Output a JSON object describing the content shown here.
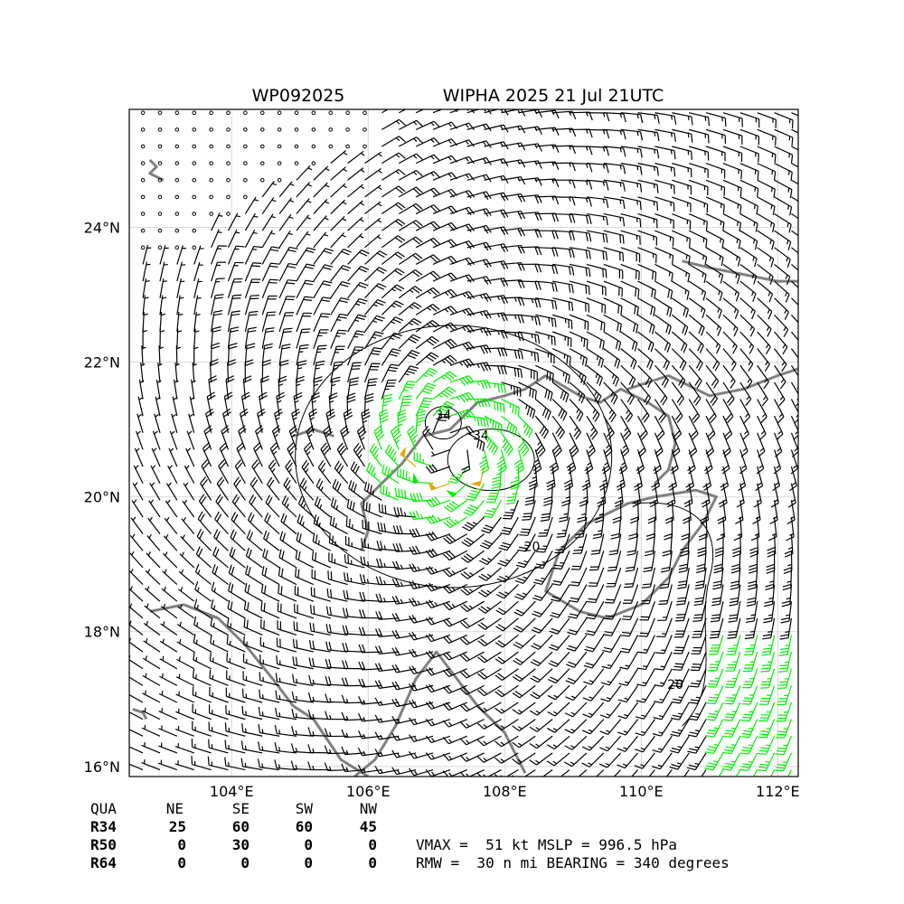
{
  "header": {
    "storm_id": "WP092025",
    "storm_title": "WIPHA 2025 21 Jul 21UTC"
  },
  "chart_data": {
    "type": "wind-barb-map",
    "xlim": [
      102.5,
      112.3
    ],
    "ylim": [
      15.85,
      25.75
    ],
    "x_ticks": [
      104,
      106,
      108,
      110,
      112
    ],
    "x_tick_labels": [
      "104°E",
      "106°E",
      "108°E",
      "110°E",
      "112°E"
    ],
    "y_ticks": [
      16,
      18,
      20,
      22,
      24
    ],
    "y_tick_labels": [
      "16°N",
      "18°N",
      "20°N",
      "22°N",
      "24°N"
    ],
    "grid": true,
    "storm_center": {
      "lon": 107.2,
      "lat": 20.75
    },
    "contour_labels": [
      "34",
      "34",
      "20",
      "20"
    ],
    "colors": {
      "calm_to_34kt": "#000000",
      "34_to_50kt": "#00ee00",
      "50_to_64kt": "#e6a800",
      "coastline": "#808080",
      "contour": "#000000",
      "grid": "#d8d8d8"
    }
  },
  "radii_table": {
    "header": [
      "QUA",
      "NE",
      "SE",
      "SW",
      "NW"
    ],
    "rows": [
      [
        "R34",
        "25",
        "60",
        "60",
        "45"
      ],
      [
        "R50",
        "0",
        "30",
        "0",
        "0"
      ],
      [
        "R64",
        "0",
        "0",
        "0",
        "0"
      ]
    ]
  },
  "summary": {
    "line1": "VMAX =  51 kt MSLP = 996.5 hPa",
    "line2": "RMW =  30 n mi BEARING = 340 degrees"
  }
}
